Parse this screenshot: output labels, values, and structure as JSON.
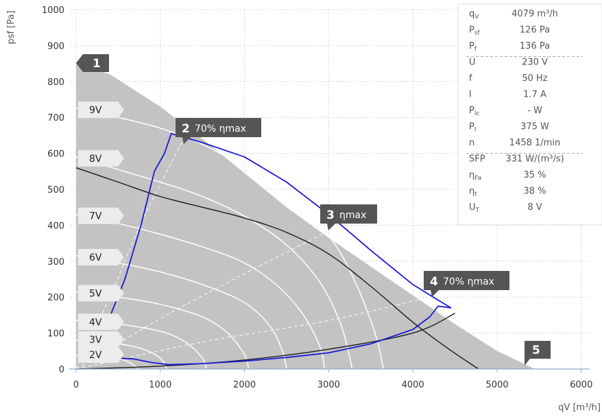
{
  "chart_data": {
    "type": "line",
    "xlabel": "qV [m³/h]",
    "ylabel": "psf [Pa]",
    "xlim": [
      -50,
      6100
    ],
    "ylim": [
      0,
      1000
    ],
    "x_ticks": [
      0,
      1000,
      2000,
      3000,
      4000,
      5000,
      6000
    ],
    "y_ticks": [
      0,
      100,
      200,
      300,
      400,
      500,
      600,
      700,
      800,
      900,
      1000
    ],
    "grid": true,
    "colors": {
      "envelope": "#c3c3c3",
      "blue": "#1a1ad6",
      "black": "#1a1a1a",
      "white": "#ffffff",
      "marker": "#555555",
      "axis": "#8eaac9"
    },
    "envelope": [
      [
        0,
        850
      ],
      [
        400,
        820
      ],
      [
        1000,
        730
      ],
      [
        1500,
        640
      ],
      [
        2000,
        545
      ],
      [
        2500,
        450
      ],
      [
        3000,
        365
      ],
      [
        3500,
        285
      ],
      [
        4000,
        205
      ],
      [
        4500,
        125
      ],
      [
        5000,
        50
      ],
      [
        5450,
        0
      ],
      [
        0,
        0
      ]
    ],
    "voltage_curves": [
      {
        "label": "9V",
        "points": [
          [
            0,
            725
          ],
          [
            500,
            700
          ],
          [
            1000,
            670
          ],
          [
            1500,
            625
          ],
          [
            2000,
            560
          ],
          [
            2500,
            480
          ],
          [
            3000,
            370
          ],
          [
            3300,
            250
          ],
          [
            3550,
            100
          ],
          [
            3650,
            0
          ]
        ]
      },
      {
        "label": "8V",
        "points": [
          [
            0,
            590
          ],
          [
            500,
            555
          ],
          [
            1000,
            520
          ],
          [
            1500,
            480
          ],
          [
            2000,
            425
          ],
          [
            2500,
            345
          ],
          [
            2900,
            240
          ],
          [
            3150,
            120
          ],
          [
            3280,
            0
          ]
        ]
      },
      {
        "label": "7V",
        "points": [
          [
            0,
            430
          ],
          [
            500,
            405
          ],
          [
            1000,
            375
          ],
          [
            1500,
            340
          ],
          [
            2000,
            295
          ],
          [
            2400,
            230
          ],
          [
            2700,
            150
          ],
          [
            2900,
            60
          ],
          [
            2950,
            0
          ]
        ]
      },
      {
        "label": "6V",
        "points": [
          [
            0,
            315
          ],
          [
            500,
            295
          ],
          [
            1000,
            270
          ],
          [
            1500,
            235
          ],
          [
            2000,
            185
          ],
          [
            2300,
            120
          ],
          [
            2450,
            50
          ],
          [
            2500,
            0
          ]
        ]
      },
      {
        "label": "5V",
        "points": [
          [
            0,
            215
          ],
          [
            500,
            200
          ],
          [
            1000,
            180
          ],
          [
            1500,
            145
          ],
          [
            1800,
            100
          ],
          [
            2000,
            40
          ],
          [
            2050,
            0
          ]
        ]
      },
      {
        "label": "4V",
        "points": [
          [
            0,
            135
          ],
          [
            500,
            125
          ],
          [
            1000,
            105
          ],
          [
            1300,
            75
          ],
          [
            1500,
            30
          ],
          [
            1550,
            0
          ]
        ]
      },
      {
        "label": "3V",
        "points": [
          [
            0,
            80
          ],
          [
            500,
            70
          ],
          [
            800,
            55
          ],
          [
            1000,
            30
          ],
          [
            1080,
            0
          ]
        ]
      },
      {
        "label": "2V",
        "points": [
          [
            0,
            38
          ],
          [
            400,
            32
          ],
          [
            600,
            22
          ],
          [
            750,
            0
          ]
        ]
      }
    ],
    "black_curve": [
      [
        0,
        560
      ],
      [
        500,
        520
      ],
      [
        1000,
        480
      ],
      [
        1500,
        450
      ],
      [
        2000,
        420
      ],
      [
        2500,
        380
      ],
      [
        3000,
        320
      ],
      [
        3500,
        230
      ],
      [
        4000,
        130
      ],
      [
        4400,
        60
      ],
      [
        4650,
        20
      ],
      [
        4780,
        0
      ]
    ],
    "system_curve": [
      [
        0,
        0
      ],
      [
        1000,
        8
      ],
      [
        2000,
        25
      ],
      [
        3000,
        55
      ],
      [
        4000,
        100
      ],
      [
        4500,
        155
      ]
    ],
    "blue_curve": [
      [
        530,
        30
      ],
      [
        680,
        28
      ],
      [
        900,
        18
      ],
      [
        1100,
        12
      ],
      [
        1500,
        15
      ],
      [
        2000,
        22
      ],
      [
        2500,
        32
      ],
      [
        3000,
        45
      ],
      [
        3500,
        70
      ],
      [
        4000,
        110
      ],
      [
        4200,
        145
      ],
      [
        4300,
        175
      ],
      [
        4450,
        170
      ],
      [
        4000,
        235
      ],
      [
        3500,
        330
      ],
      [
        3000,
        430
      ],
      [
        2500,
        520
      ],
      [
        2000,
        590
      ],
      [
        1500,
        630
      ],
      [
        1130,
        655
      ],
      [
        1050,
        600
      ],
      [
        930,
        550
      ],
      [
        770,
        400
      ],
      [
        580,
        250
      ],
      [
        340,
        110
      ]
    ],
    "eff_dashed": [
      {
        "points": [
          [
            0,
            0
          ],
          [
            400,
            200
          ],
          [
            800,
            420
          ],
          [
            1300,
            650
          ]
        ]
      },
      {
        "points": [
          [
            0,
            0
          ],
          [
            1000,
            140
          ],
          [
            2000,
            265
          ],
          [
            3050,
            390
          ]
        ]
      },
      {
        "points": [
          [
            0,
            0
          ],
          [
            1500,
            75
          ],
          [
            3000,
            135
          ],
          [
            4200,
            200
          ]
        ]
      }
    ],
    "markers": [
      {
        "num": "1",
        "text": "",
        "at": [
          0,
          850
        ]
      },
      {
        "num": "2",
        "text": "70% ηmax",
        "at": [
          1300,
          650
        ]
      },
      {
        "num": "3",
        "text": "ηmax",
        "at": [
          3050,
          390
        ]
      },
      {
        "num": "4",
        "text": "70% ηmax",
        "at": [
          4200,
          200
        ]
      },
      {
        "num": "5",
        "text": "",
        "at": [
          5450,
          0
        ]
      }
    ],
    "info_box": {
      "groups": [
        [
          {
            "sym": "q",
            "sub": "V",
            "val": "4079 m³/h"
          },
          {
            "sym": "P",
            "sub": "sf",
            "val": "126 Pa"
          },
          {
            "sym": "P",
            "sub": "f",
            "val": "136 Pa"
          }
        ],
        [
          {
            "sym": "U",
            "sub": "",
            "val": "230 V"
          },
          {
            "sym": "f",
            "sub": "",
            "val": "50 Hz"
          },
          {
            "sym": "I",
            "sub": "",
            "val": "1.7 A"
          },
          {
            "sym": "P",
            "sub": "lc",
            "val": "- W"
          },
          {
            "sym": "P",
            "sub": "l",
            "val": "375 W"
          },
          {
            "sym": "n",
            "sub": "",
            "val": "1458 1/min"
          }
        ],
        [
          {
            "sym": "SFP",
            "sub": "",
            "val": "331 W/(m³/s)"
          },
          {
            "sym": "η",
            "sub": "Fa",
            "val": "35 %"
          },
          {
            "sym": "η",
            "sub": "t",
            "val": "38 %"
          },
          {
            "sym": "U",
            "sub": "T",
            "val": "8 V"
          }
        ]
      ]
    }
  }
}
